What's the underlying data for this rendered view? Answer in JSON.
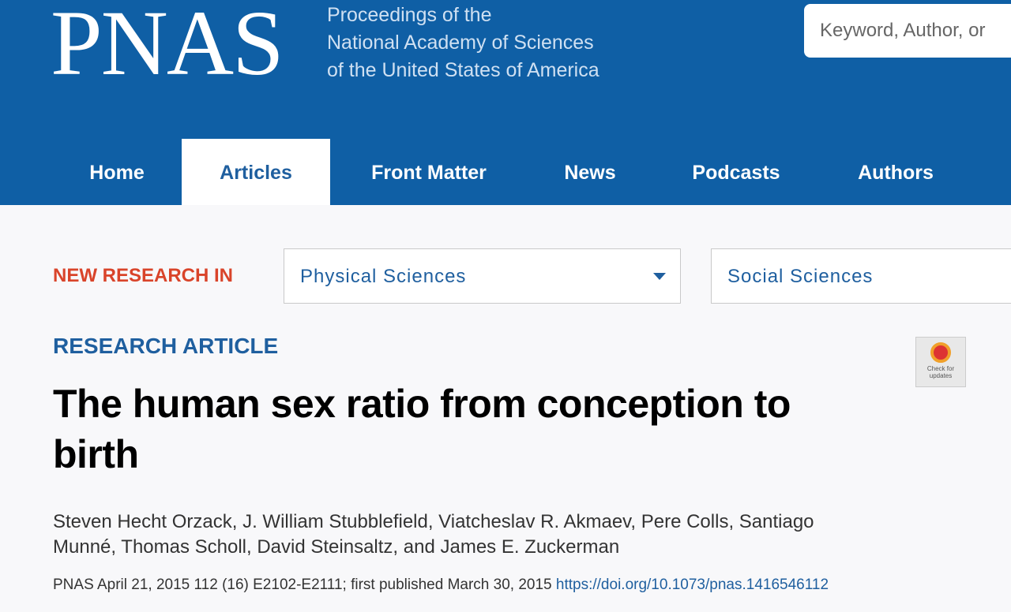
{
  "header": {
    "logo": "PNAS",
    "tagline": [
      "Proceedings of the",
      "National Academy of Sciences",
      "of the United States of America"
    ],
    "search_placeholder": "Keyword, Author, or"
  },
  "nav": {
    "items": [
      "Home",
      "Articles",
      "Front Matter",
      "News",
      "Podcasts",
      "Authors"
    ],
    "active": "Articles"
  },
  "filter": {
    "label": "NEW RESEARCH IN",
    "options": [
      "Physical Sciences",
      "Social Sciences"
    ]
  },
  "article": {
    "kind": "RESEARCH ARTICLE",
    "title": "The human sex ratio from conception to birth",
    "authors": "Steven Hecht Orzack, J. William Stubblefield, Viatcheslav R. Akmaev, Pere Colls, Santiago Munné, Thomas Scholl, David Steinsaltz, and James E. Zuckerman",
    "citation": "PNAS April 21, 2015 112 (16) E2102-E2111; first published March 30, 2015",
    "doi": "https://doi.org/10.1073/pnas.1416546112",
    "badge": "Check for updates"
  }
}
